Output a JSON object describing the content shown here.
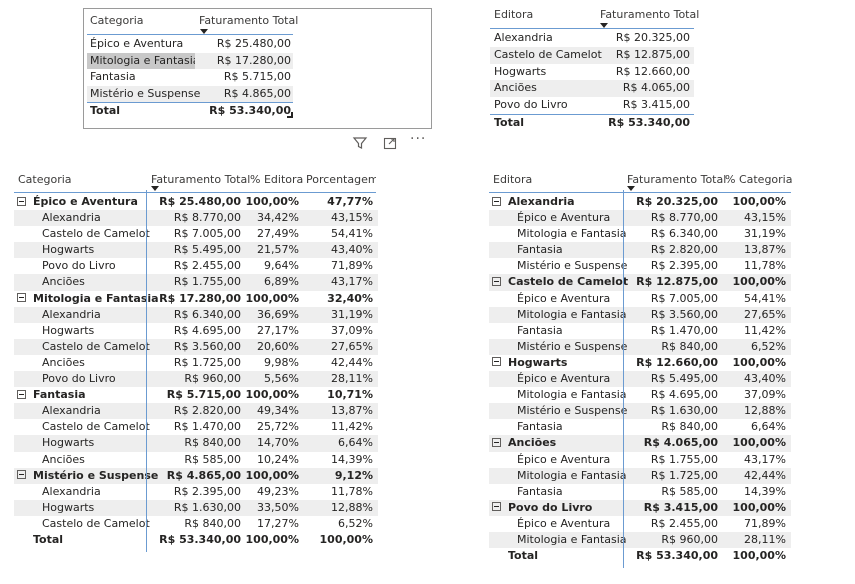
{
  "table1": {
    "headers": [
      "Categoria",
      "Faturamento Total"
    ],
    "rows": [
      [
        "Épico e Aventura",
        "R$ 25.480,00"
      ],
      [
        "Mitologia e Fantasia",
        "R$ 17.280,00"
      ],
      [
        "Fantasia",
        "R$ 5.715,00"
      ],
      [
        "Mistério e Suspense",
        "R$ 4.865,00"
      ]
    ],
    "total": [
      "Total",
      "R$ 53.340,00"
    ]
  },
  "table2": {
    "headers": [
      "Editora",
      "Faturamento Total"
    ],
    "rows": [
      [
        "Alexandria",
        "R$ 20.325,00"
      ],
      [
        "Castelo de Camelot",
        "R$ 12.875,00"
      ],
      [
        "Hogwarts",
        "R$ 12.660,00"
      ],
      [
        "Anciões",
        "R$ 4.065,00"
      ],
      [
        "Povo do Livro",
        "R$ 3.415,00"
      ]
    ],
    "total": [
      "Total",
      "R$ 53.340,00"
    ]
  },
  "table3": {
    "headers": [
      "Categoria",
      "Faturamento Total",
      "% Editora",
      "Porcentagem"
    ],
    "groups": [
      {
        "name": "Épico e Aventura",
        "values": [
          "R$ 25.480,00",
          "100,00%",
          "47,77%"
        ],
        "children": [
          [
            "Alexandria",
            "R$ 8.770,00",
            "34,42%",
            "43,15%"
          ],
          [
            "Castelo de Camelot",
            "R$ 7.005,00",
            "27,49%",
            "54,41%"
          ],
          [
            "Hogwarts",
            "R$ 5.495,00",
            "21,57%",
            "43,40%"
          ],
          [
            "Povo do Livro",
            "R$ 2.455,00",
            "9,64%",
            "71,89%"
          ],
          [
            "Anciões",
            "R$ 1.755,00",
            "6,89%",
            "43,17%"
          ]
        ]
      },
      {
        "name": "Mitologia e Fantasia",
        "values": [
          "R$ 17.280,00",
          "100,00%",
          "32,40%"
        ],
        "children": [
          [
            "Alexandria",
            "R$ 6.340,00",
            "36,69%",
            "31,19%"
          ],
          [
            "Hogwarts",
            "R$ 4.695,00",
            "27,17%",
            "37,09%"
          ],
          [
            "Castelo de Camelot",
            "R$ 3.560,00",
            "20,60%",
            "27,65%"
          ],
          [
            "Anciões",
            "R$ 1.725,00",
            "9,98%",
            "42,44%"
          ],
          [
            "Povo do Livro",
            "R$ 960,00",
            "5,56%",
            "28,11%"
          ]
        ]
      },
      {
        "name": "Fantasia",
        "values": [
          "R$ 5.715,00",
          "100,00%",
          "10,71%"
        ],
        "children": [
          [
            "Alexandria",
            "R$ 2.820,00",
            "49,34%",
            "13,87%"
          ],
          [
            "Castelo de Camelot",
            "R$ 1.470,00",
            "25,72%",
            "11,42%"
          ],
          [
            "Hogwarts",
            "R$ 840,00",
            "14,70%",
            "6,64%"
          ],
          [
            "Anciões",
            "R$ 585,00",
            "10,24%",
            "14,39%"
          ]
        ]
      },
      {
        "name": "Mistério e Suspense",
        "values": [
          "R$ 4.865,00",
          "100,00%",
          "9,12%"
        ],
        "children": [
          [
            "Alexandria",
            "R$ 2.395,00",
            "49,23%",
            "11,78%"
          ],
          [
            "Hogwarts",
            "R$ 1.630,00",
            "33,50%",
            "12,88%"
          ],
          [
            "Castelo de Camelot",
            "R$ 840,00",
            "17,27%",
            "6,52%"
          ]
        ]
      }
    ],
    "total": [
      "Total",
      "R$ 53.340,00",
      "100,00%",
      "100,00%"
    ]
  },
  "table4": {
    "headers": [
      "Editora",
      "Faturamento Total",
      "% Categoria"
    ],
    "groups": [
      {
        "name": "Alexandria",
        "values": [
          "R$ 20.325,00",
          "100,00%"
        ],
        "children": [
          [
            "Épico e Aventura",
            "R$ 8.770,00",
            "43,15%"
          ],
          [
            "Mitologia e Fantasia",
            "R$ 6.340,00",
            "31,19%"
          ],
          [
            "Fantasia",
            "R$ 2.820,00",
            "13,87%"
          ],
          [
            "Mistério e Suspense",
            "R$ 2.395,00",
            "11,78%"
          ]
        ]
      },
      {
        "name": "Castelo de Camelot",
        "values": [
          "R$ 12.875,00",
          "100,00%"
        ],
        "children": [
          [
            "Épico e Aventura",
            "R$ 7.005,00",
            "54,41%"
          ],
          [
            "Mitologia e Fantasia",
            "R$ 3.560,00",
            "27,65%"
          ],
          [
            "Fantasia",
            "R$ 1.470,00",
            "11,42%"
          ],
          [
            "Mistério e Suspense",
            "R$ 840,00",
            "6,52%"
          ]
        ]
      },
      {
        "name": "Hogwarts",
        "values": [
          "R$ 12.660,00",
          "100,00%"
        ],
        "children": [
          [
            "Épico e Aventura",
            "R$ 5.495,00",
            "43,40%"
          ],
          [
            "Mitologia e Fantasia",
            "R$ 4.695,00",
            "37,09%"
          ],
          [
            "Mistério e Suspense",
            "R$ 1.630,00",
            "12,88%"
          ],
          [
            "Fantasia",
            "R$ 840,00",
            "6,64%"
          ]
        ]
      },
      {
        "name": "Anciões",
        "values": [
          "R$ 4.065,00",
          "100,00%"
        ],
        "children": [
          [
            "Épico e Aventura",
            "R$ 1.755,00",
            "43,17%"
          ],
          [
            "Mitologia e Fantasia",
            "R$ 1.725,00",
            "42,44%"
          ],
          [
            "Fantasia",
            "R$ 585,00",
            "14,39%"
          ]
        ]
      },
      {
        "name": "Povo do Livro",
        "values": [
          "R$ 3.415,00",
          "100,00%"
        ],
        "children": [
          [
            "Épico e Aventura",
            "R$ 2.455,00",
            "71,89%"
          ],
          [
            "Mitologia e Fantasia",
            "R$ 960,00",
            "28,11%"
          ]
        ]
      }
    ],
    "total": [
      "Total",
      "R$ 53.340,00",
      "100,00%"
    ]
  },
  "toolbar": {
    "icons": [
      "filter-icon",
      "focus-mode-icon",
      "more-options-icon"
    ],
    "more_glyph": "···"
  },
  "colors": {
    "accent": "#6b9bd1",
    "highlight": "#c8c8c8",
    "stripe": "#eeeeee"
  }
}
